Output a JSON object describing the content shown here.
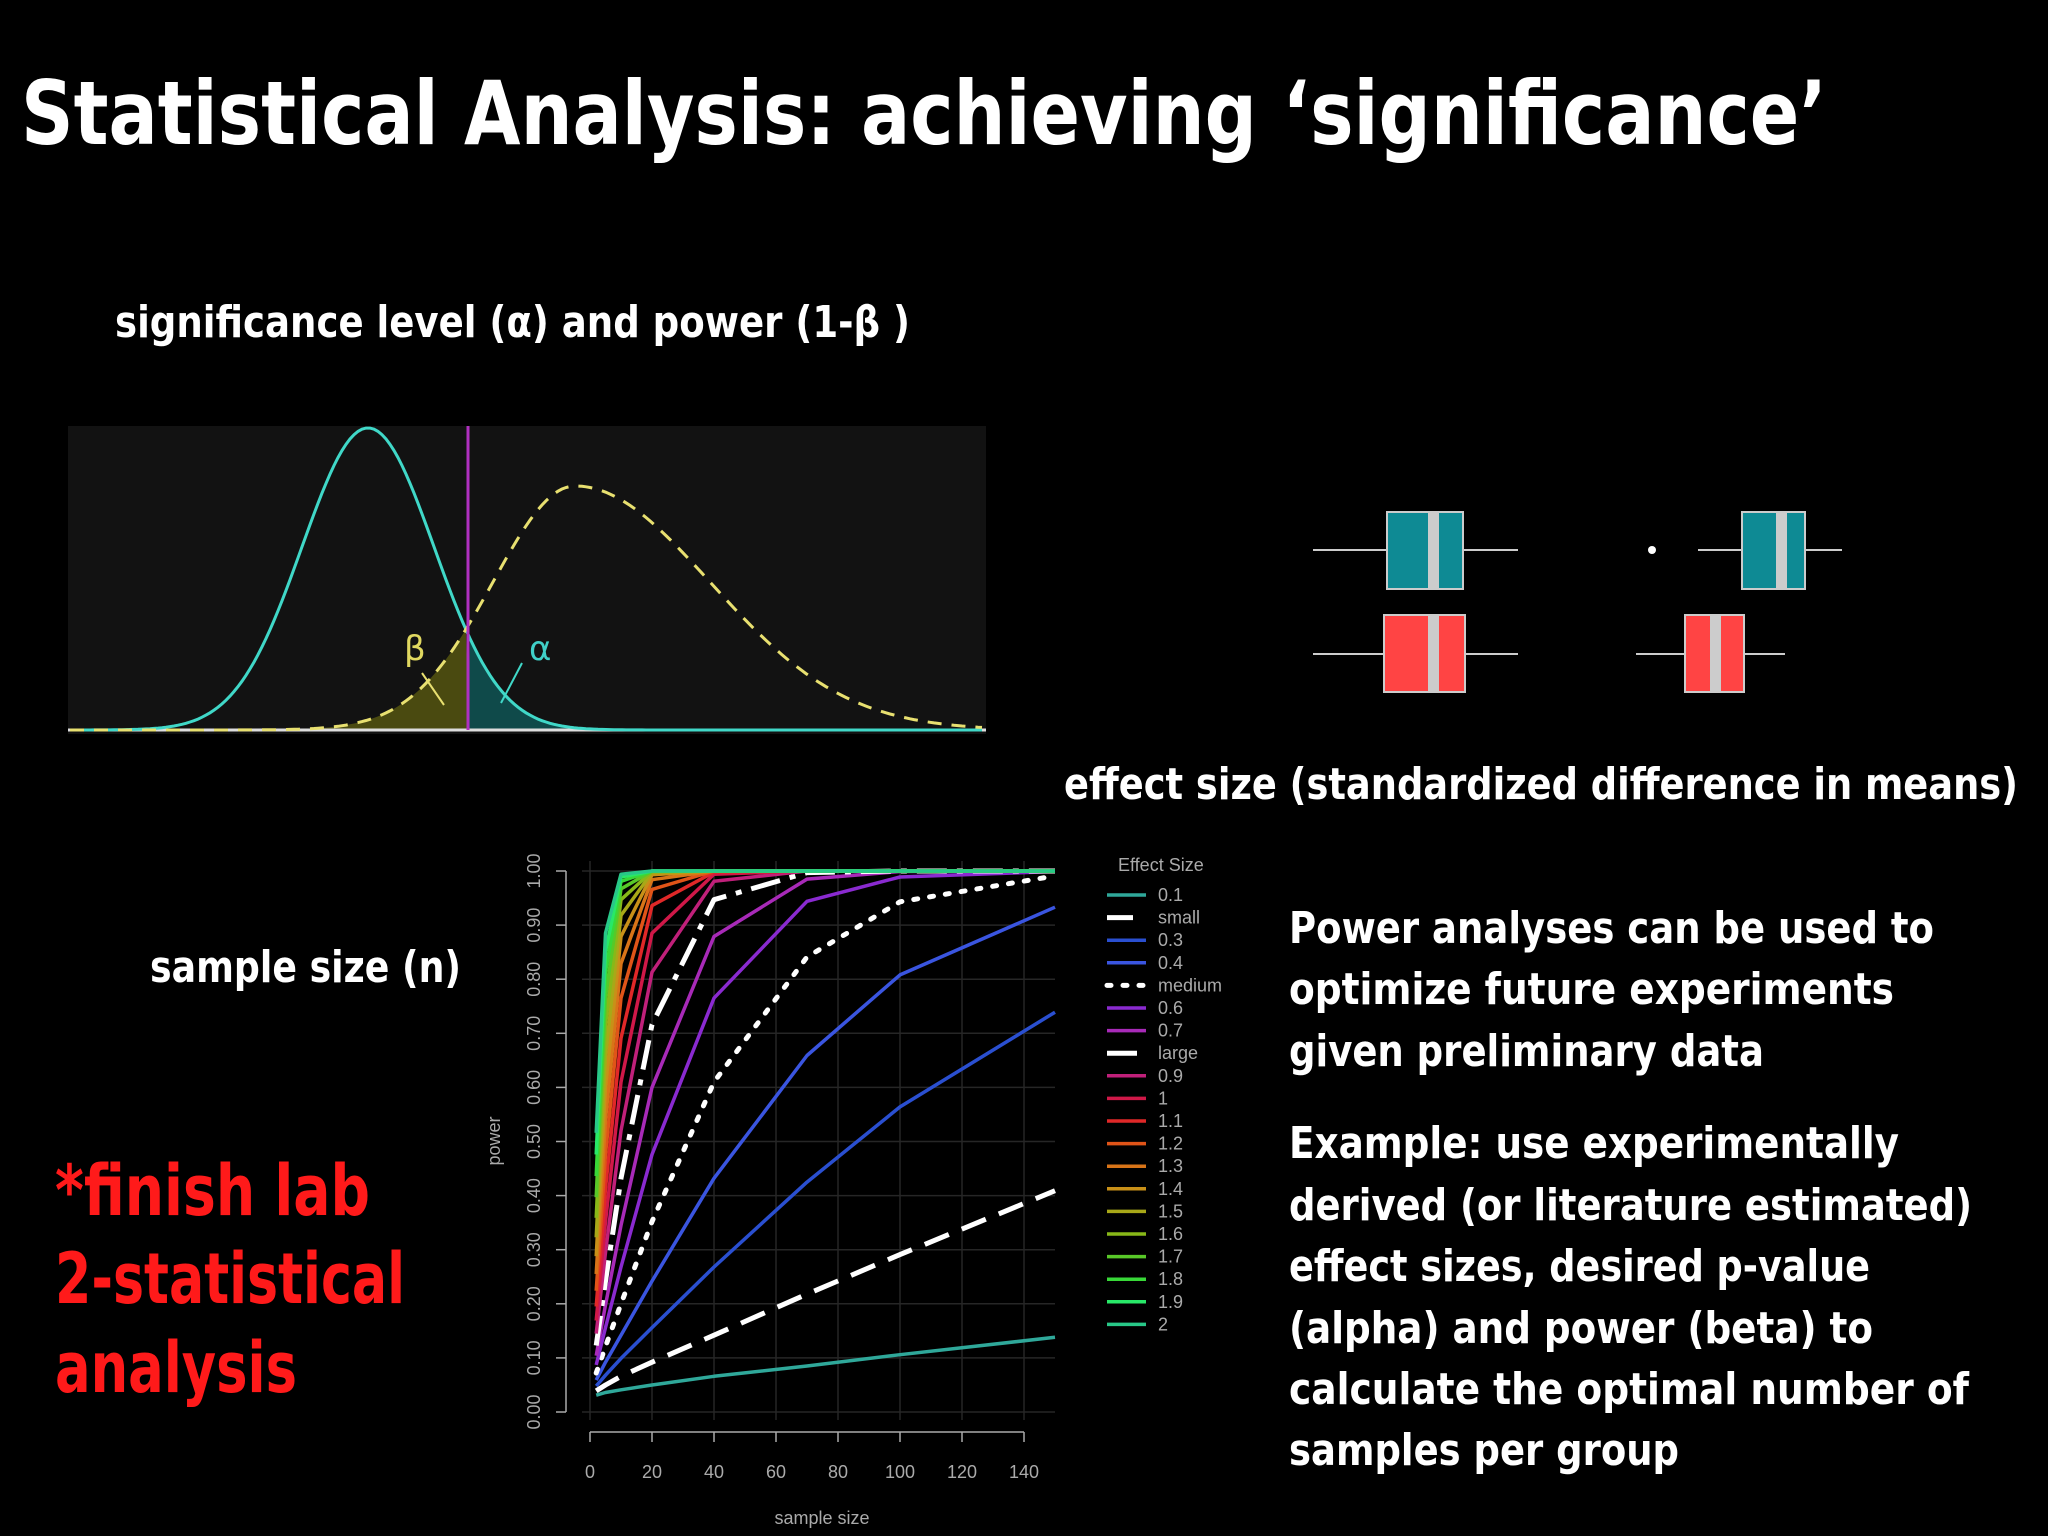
{
  "header": {
    "title": "Statistical Analysis: achieving ‘significance’"
  },
  "left_panel": {
    "subtitle": "significance level (α) and power (1-β )",
    "beta_label": "β",
    "alpha_label": "α"
  },
  "effect_size_caption": "effect size (standardized difference in means)",
  "sample_size_caption": "sample size (n)",
  "note": [
    "*finish lab",
    "2-statistical",
    "analysis"
  ],
  "body": {
    "paragraphs": [
      [
        "Power analyses can be used to",
        "optimize future experiments",
        "given preliminary data"
      ],
      [
        "Example: use experimentally",
        "derived (or literature estimated)",
        "effect sizes, desired p-value",
        "(alpha) and power (beta) to",
        "calculate the optimal number of",
        "samples per group"
      ]
    ]
  },
  "chart_data": {
    "type": "line",
    "xlabel": "sample size",
    "ylabel": "power",
    "legend_title": "Effect Size",
    "grid": true,
    "x": [
      2,
      5,
      10,
      20,
      40,
      70,
      100,
      150
    ],
    "xlim": [
      0,
      150
    ],
    "xticks": [
      0,
      20,
      40,
      60,
      80,
      100,
      120,
      140
    ],
    "ylim": [
      0,
      1
    ],
    "yticks": [
      {
        "value": 0,
        "label": "0.00"
      },
      {
        "value": 0.1,
        "label": "0.10"
      },
      {
        "value": 0.2,
        "label": "0.20"
      },
      {
        "value": 0.3,
        "label": "0.30"
      },
      {
        "value": 0.4,
        "label": "0.40"
      },
      {
        "value": 0.5,
        "label": "0.50"
      },
      {
        "value": 0.6,
        "label": "0.60"
      },
      {
        "value": 0.7,
        "label": "0.70"
      },
      {
        "value": 0.8,
        "label": "0.80"
      },
      {
        "value": 0.9,
        "label": "0.90"
      },
      {
        "value": 1,
        "label": "1.00"
      }
    ],
    "series": [
      {
        "name": "0.1",
        "color": "#2fa89a",
        "line_style": "solid",
        "values": [
          0.031,
          0.036,
          0.041,
          0.05,
          0.066,
          0.085,
          0.106,
          0.138
        ]
      },
      {
        "name": "small",
        "color": "#ffffff",
        "line_style": "dashed",
        "values": [
          0.039,
          0.05,
          0.066,
          0.092,
          0.142,
          0.218,
          0.291,
          0.409
        ]
      },
      {
        "name": "0.3",
        "color": "#2a4fd0",
        "line_style": "solid",
        "values": [
          0.048,
          0.068,
          0.099,
          0.156,
          0.268,
          0.425,
          0.564,
          0.739
        ]
      },
      {
        "name": "0.4",
        "color": "#3a55e0",
        "line_style": "solid",
        "values": [
          0.059,
          0.092,
          0.142,
          0.242,
          0.432,
          0.659,
          0.808,
          0.933
        ]
      },
      {
        "name": "medium",
        "color": "#ffffff",
        "line_style": "dotted",
        "values": [
          0.072,
          0.121,
          0.2,
          0.352,
          0.61,
          0.841,
          0.943,
          0.991
        ]
      },
      {
        "name": "0.6",
        "color": "#8a2ad0",
        "line_style": "solid",
        "values": [
          0.087,
          0.156,
          0.268,
          0.476,
          0.765,
          0.944,
          0.989,
          0.999
        ]
      },
      {
        "name": "0.7",
        "color": "#a82ab8",
        "line_style": "solid",
        "values": [
          0.104,
          0.198,
          0.345,
          0.6,
          0.879,
          0.985,
          0.999,
          1
        ]
      },
      {
        "name": "large",
        "color": "#ffffff",
        "line_style": "dashdot",
        "values": [
          0.123,
          0.242,
          0.432,
          0.716,
          0.947,
          0.997,
          1,
          1
        ]
      },
      {
        "name": "0.9",
        "color": "#c0207a",
        "line_style": "solid",
        "values": [
          0.145,
          0.295,
          0.52,
          0.813,
          0.981,
          1,
          1,
          1
        ]
      },
      {
        "name": "1",
        "color": "#d01848",
        "line_style": "solid",
        "values": [
          0.169,
          0.352,
          0.61,
          0.885,
          0.994,
          1,
          1,
          1
        ]
      },
      {
        "name": "1.1",
        "color": "#e02828",
        "line_style": "solid",
        "values": [
          0.195,
          0.413,
          0.691,
          0.936,
          0.998,
          1,
          1,
          1
        ]
      },
      {
        "name": "1.2",
        "color": "#e05418",
        "line_style": "solid",
        "values": [
          0.224,
          0.476,
          0.765,
          0.966,
          1,
          1,
          1,
          1
        ]
      },
      {
        "name": "1.3",
        "color": "#d87418",
        "line_style": "solid",
        "values": [
          0.255,
          0.54,
          0.829,
          0.984,
          1,
          1,
          1,
          1
        ]
      },
      {
        "name": "1.4",
        "color": "#c89018",
        "line_style": "solid",
        "values": [
          0.288,
          0.6,
          0.879,
          0.993,
          1,
          1,
          1,
          1
        ]
      },
      {
        "name": "1.5",
        "color": "#a8a818",
        "line_style": "solid",
        "values": [
          0.323,
          0.659,
          0.918,
          0.997,
          1,
          1,
          1,
          1
        ]
      },
      {
        "name": "1.6",
        "color": "#88b818",
        "line_style": "solid",
        "values": [
          0.359,
          0.716,
          0.947,
          0.999,
          1,
          1,
          1,
          1
        ]
      },
      {
        "name": "1.7",
        "color": "#58c828",
        "line_style": "solid",
        "values": [
          0.397,
          0.767,
          0.967,
          1,
          1,
          1,
          1,
          1
        ]
      },
      {
        "name": "1.8",
        "color": "#38d838",
        "line_style": "solid",
        "values": [
          0.436,
          0.813,
          0.981,
          1,
          1,
          1,
          1,
          1
        ]
      },
      {
        "name": "1.9",
        "color": "#28e868",
        "line_style": "solid",
        "values": [
          0.476,
          0.851,
          0.989,
          1,
          1,
          1,
          1,
          1
        ]
      },
      {
        "name": "2",
        "color": "#28c888",
        "line_style": "solid",
        "values": [
          0.516,
          0.885,
          0.994,
          1,
          1,
          1,
          1,
          1
        ]
      }
    ]
  }
}
